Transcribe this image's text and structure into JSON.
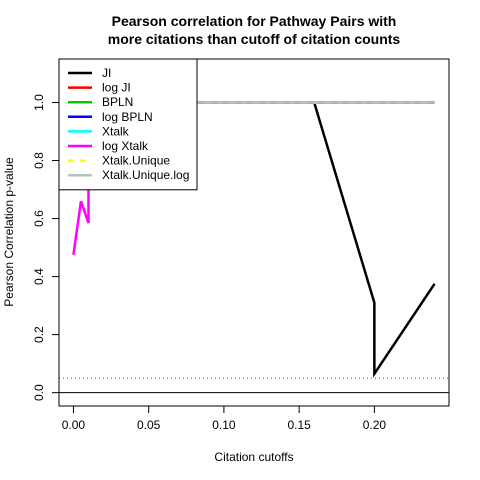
{
  "chart_data": {
    "type": "line",
    "title": [
      "Pearson correlation for Pathway Pairs with",
      "more citations than cutoff of citation counts"
    ],
    "xlabel": "Citation cutoffs",
    "ylabel": "Pearson Correlation p-value",
    "xlim": [
      -0.0096,
      0.2496
    ],
    "ylim": [
      -0.046,
      1.15
    ],
    "x_ticks": [
      0.0,
      0.05,
      0.1,
      0.15,
      0.2
    ],
    "x_tick_labels": [
      "0.00",
      "0.05",
      "0.10",
      "0.15",
      "0.20"
    ],
    "y_ticks": [
      0.0,
      0.2,
      0.4,
      0.6,
      0.8,
      1.0
    ],
    "y_tick_labels": [
      "0.0",
      "0.2",
      "0.4",
      "0.6",
      "0.8",
      "1.0"
    ],
    "hlines": [
      {
        "y": 0.05,
        "style": "dotted",
        "color": "#555555"
      },
      {
        "y": 0.0,
        "style": "solid",
        "color": "#000000"
      }
    ],
    "legend_position": "top-left",
    "series": [
      {
        "name": "JI",
        "color": "#000000",
        "dash": "",
        "x": [
          0.0,
          0.01,
          0.16,
          0.2,
          0.2,
          0.24
        ],
        "y": [
          1.0,
          1.0,
          1.0,
          0.31,
          0.065,
          0.375
        ]
      },
      {
        "name": "log JI",
        "color": "#ff0000",
        "dash": "",
        "x": [
          0.0,
          0.24
        ],
        "y": [
          1.0,
          1.0
        ]
      },
      {
        "name": "BPLN",
        "color": "#00cd00",
        "dash": "",
        "x": [
          0.0,
          0.24
        ],
        "y": [
          1.0,
          1.0
        ]
      },
      {
        "name": "log BPLN",
        "color": "#0000ff",
        "dash": "",
        "x": [
          0.0,
          0.24
        ],
        "y": [
          1.0,
          1.0
        ]
      },
      {
        "name": "Xtalk",
        "color": "#00ffff",
        "dash": "",
        "x": [
          0.0,
          0.24
        ],
        "y": [
          1.0,
          1.0
        ]
      },
      {
        "name": "log Xtalk",
        "color": "#ff00ff",
        "dash": "",
        "x": [
          0.0,
          0.005,
          0.01,
          0.01,
          0.24
        ],
        "y": [
          0.475,
          0.66,
          0.585,
          1.0,
          1.0
        ]
      },
      {
        "name": "Xtalk.Unique",
        "color": "#ffff00",
        "dash": "6,6",
        "x": [
          0.0,
          0.24
        ],
        "y": [
          1.0,
          1.0
        ]
      },
      {
        "name": "Xtalk.Unique.log",
        "color": "#bebebe",
        "dash": "",
        "x": [
          0.0,
          0.24
        ],
        "y": [
          1.0,
          1.0
        ]
      }
    ]
  }
}
